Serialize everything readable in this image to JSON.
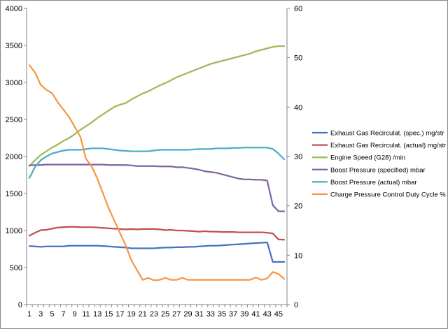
{
  "chart_data": {
    "type": "line",
    "title": "",
    "xlabel": "",
    "ylabel": "",
    "y2label": "",
    "grid": false,
    "legend_position": "right",
    "x": [
      1,
      2,
      3,
      4,
      5,
      6,
      7,
      8,
      9,
      10,
      11,
      12,
      13,
      14,
      15,
      16,
      17,
      18,
      19,
      20,
      21,
      22,
      23,
      24,
      25,
      26,
      27,
      28,
      29,
      30,
      31,
      32,
      33,
      34,
      35,
      36,
      37,
      38,
      39,
      40,
      41,
      42,
      43,
      44,
      45,
      46
    ],
    "x_tick_labels": [
      "1",
      "3",
      "5",
      "7",
      "9",
      "11",
      "13",
      "15",
      "17",
      "19",
      "21",
      "23",
      "25",
      "27",
      "29",
      "31",
      "33",
      "35",
      "37",
      "39",
      "41",
      "43",
      "45"
    ],
    "y_left": {
      "min": 0,
      "max": 4000,
      "step": 500,
      "ticks": [
        "0",
        "500",
        "1000",
        "1500",
        "2000",
        "2500",
        "3000",
        "3500",
        "4000"
      ]
    },
    "y_right": {
      "min": 0,
      "max": 60,
      "step": 10,
      "ticks": [
        "0",
        "10",
        "20",
        "30",
        "40",
        "50",
        "60"
      ]
    },
    "series": [
      {
        "name": "Exhaust Gas Recirculat. (spec.)  mg/str",
        "color": "#4472C4",
        "axis": "left",
        "values": [
          790,
          785,
          780,
          785,
          785,
          785,
          785,
          795,
          795,
          795,
          795,
          795,
          795,
          790,
          785,
          780,
          775,
          770,
          760,
          760,
          760,
          760,
          760,
          765,
          770,
          770,
          775,
          775,
          780,
          780,
          785,
          790,
          795,
          795,
          800,
          805,
          810,
          815,
          820,
          825,
          830,
          835,
          840,
          575,
          575,
          575
        ]
      },
      {
        "name": "Exhaust Gas Recirculat. (actual)  mg/str",
        "color": "#C0504D",
        "axis": "left",
        "values": [
          930,
          970,
          1005,
          1010,
          1025,
          1040,
          1045,
          1050,
          1050,
          1045,
          1045,
          1045,
          1040,
          1035,
          1030,
          1025,
          1020,
          1015,
          1020,
          1015,
          1020,
          1020,
          1020,
          1015,
          1005,
          1010,
          1000,
          1000,
          995,
          990,
          985,
          990,
          985,
          985,
          980,
          980,
          980,
          975,
          975,
          975,
          975,
          975,
          970,
          960,
          880,
          875
        ]
      },
      {
        "name": "Engine Speed (G28)  /min",
        "color": "#9BBB59",
        "axis": "left",
        "values": [
          1870,
          1950,
          2020,
          2070,
          2120,
          2160,
          2210,
          2250,
          2300,
          2360,
          2410,
          2460,
          2520,
          2570,
          2620,
          2670,
          2700,
          2720,
          2770,
          2810,
          2850,
          2880,
          2920,
          2960,
          2990,
          3030,
          3070,
          3100,
          3130,
          3160,
          3190,
          3220,
          3250,
          3270,
          3290,
          3310,
          3330,
          3350,
          3370,
          3390,
          3420,
          3440,
          3460,
          3480,
          3490,
          3490
        ]
      },
      {
        "name": "Boost Pressure (specified)  mbar",
        "color": "#8064A2",
        "axis": "left",
        "values": [
          1880,
          1885,
          1885,
          1890,
          1890,
          1890,
          1890,
          1890,
          1890,
          1890,
          1890,
          1890,
          1890,
          1890,
          1885,
          1885,
          1885,
          1885,
          1880,
          1870,
          1870,
          1870,
          1870,
          1865,
          1865,
          1865,
          1855,
          1855,
          1845,
          1835,
          1820,
          1800,
          1790,
          1780,
          1760,
          1740,
          1720,
          1700,
          1690,
          1690,
          1685,
          1685,
          1675,
          1340,
          1260,
          1260
        ]
      },
      {
        "name": "Boost Pressure (actual)  mbar",
        "color": "#4BACC6",
        "axis": "left",
        "values": [
          1710,
          1860,
          1950,
          2000,
          2040,
          2060,
          2080,
          2090,
          2090,
          2090,
          2100,
          2110,
          2110,
          2110,
          2100,
          2090,
          2080,
          2075,
          2070,
          2070,
          2070,
          2070,
          2080,
          2090,
          2090,
          2090,
          2090,
          2090,
          2090,
          2095,
          2100,
          2100,
          2100,
          2110,
          2110,
          2110,
          2115,
          2115,
          2120,
          2120,
          2120,
          2120,
          2120,
          2100,
          2040,
          1960
        ]
      },
      {
        "name": "Charge Pressure Control Duty Cycle  %",
        "color": "#F79646",
        "axis": "right",
        "values": [
          48.5,
          47,
          44.5,
          43.5,
          42.8,
          41,
          39.5,
          38,
          36,
          34,
          29.5,
          28,
          25.5,
          22.5,
          19.5,
          17,
          14.5,
          12,
          9,
          7,
          5,
          5.4,
          4.9,
          5,
          5.4,
          5,
          5,
          5.4,
          5,
          5,
          5,
          5,
          5,
          5,
          5,
          5,
          5,
          5,
          5,
          5,
          5.5,
          5,
          5.3,
          6.6,
          6.2,
          5.2
        ]
      }
    ]
  }
}
